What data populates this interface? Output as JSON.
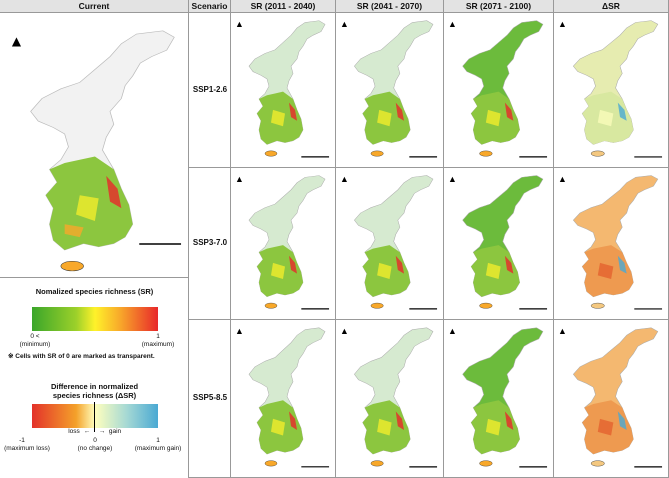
{
  "headers": {
    "current": "Current",
    "scenario": "Scenario",
    "sr_2011_2040": "SR (2011 - 2040)",
    "sr_2041_2070": "SR (2041 - 2070)",
    "sr_2071_2100": "SR (2071 - 2100)",
    "delta_sr": "ΔSR"
  },
  "scenarios": [
    "SSP1-2.6",
    "SSP3-7.0",
    "SSP5-8.5"
  ],
  "north_symbol": "N",
  "legend_sr": {
    "title": "Nomalized species richness (SR)",
    "min_value": "0 <",
    "min_text": "(minimum)",
    "max_value": "1",
    "max_text": "(maximum)",
    "note": "※ Cells with SR of 0 are marked as transparent."
  },
  "legend_delta": {
    "title_line1": "Difference in normalized",
    "title_line2": "species richness (ΔSR)",
    "loss": "loss",
    "gain": "gain",
    "min_value": "-1",
    "min_text": "(maximum loss)",
    "mid_value": "0",
    "mid_text": "(no change)",
    "max_value": "1",
    "max_text": "(maximum gain)"
  },
  "colors": {
    "sr_low": "#3aa62a",
    "sr_mid": "#fff22a",
    "sr_high": "#e8282a",
    "delta_loss": "#e3322a",
    "delta_zero": "#ffffbe",
    "delta_gain": "#4aa9d3"
  }
}
